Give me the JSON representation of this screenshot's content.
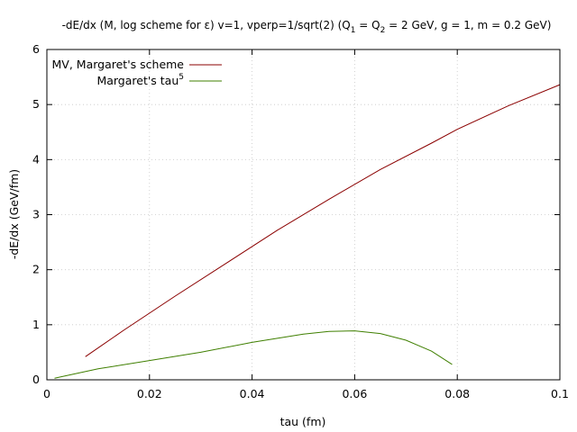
{
  "chart_data": {
    "type": "line",
    "title": {
      "prefix": "-dE/dx (M, log scheme for ε) v=1, vperp=1/sqrt(2) (Q",
      "sub1": "1",
      "mid": " = Q",
      "sub2": "2",
      "suffix": " = 2 GeV, g = 1, m = 0.2 GeV)"
    },
    "xlabel": "tau (fm)",
    "ylabel": "-dE/dx (GeV/fm)",
    "xlim": [
      0,
      0.1
    ],
    "ylim": [
      0,
      6
    ],
    "xticks": [
      0,
      0.02,
      0.04,
      0.06,
      0.08,
      0.1
    ],
    "xtick_labels": [
      "0",
      "0.02",
      "0.04",
      "0.06",
      "0.08",
      "0.1"
    ],
    "yticks": [
      0,
      1,
      2,
      3,
      4,
      5,
      6
    ],
    "ytick_labels": [
      "0",
      "1",
      "2",
      "3",
      "4",
      "5",
      "6"
    ],
    "grid": true,
    "legend_position": "top-left",
    "series": [
      {
        "name": "MV, Margaret's scheme",
        "color": "#8b0000",
        "x": [
          0.0075,
          0.015,
          0.025,
          0.035,
          0.045,
          0.055,
          0.065,
          0.075,
          0.08,
          0.09,
          0.1
        ],
        "y": [
          0.42,
          0.9,
          1.52,
          2.12,
          2.72,
          3.28,
          3.82,
          4.3,
          4.55,
          4.98,
          5.36
        ]
      },
      {
        "name": "Margaret's tau",
        "name_sup": "5",
        "color": "#3f7f00",
        "x": [
          0.0015,
          0.01,
          0.02,
          0.03,
          0.04,
          0.05,
          0.055,
          0.06,
          0.065,
          0.07,
          0.075,
          0.079
        ],
        "y": [
          0.03,
          0.2,
          0.35,
          0.5,
          0.68,
          0.83,
          0.88,
          0.89,
          0.84,
          0.72,
          0.52,
          0.28
        ]
      }
    ]
  }
}
